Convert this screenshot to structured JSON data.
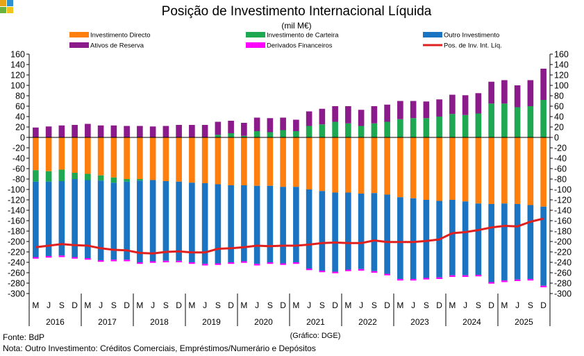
{
  "chart_data": {
    "type": "bar",
    "title": "Posição de Investimento Internacional Líquida",
    "subtitle": "(mil M€)",
    "source": "Fonte: BdP",
    "note": "Nota: Outro Investimento: Créditos Comerciais, Empréstimos/Numerário e Depósitos",
    "credit": "(Gráfico: DGE)",
    "ylim": [
      -300,
      160
    ],
    "yticks": [
      160,
      140,
      120,
      100,
      80,
      60,
      40,
      20,
      0,
      -20,
      -40,
      -60,
      -80,
      -100,
      -120,
      -140,
      -160,
      -180,
      -200,
      -220,
      -240,
      -260,
      -280,
      -300
    ],
    "grid": false,
    "legend_position": "top",
    "quarters": [
      "M",
      "J",
      "S",
      "D",
      "M",
      "J",
      "S",
      "D",
      "M",
      "J",
      "S",
      "D",
      "M",
      "J",
      "S",
      "D",
      "M",
      "J",
      "S",
      "D",
      "M",
      "J",
      "S",
      "D",
      "M",
      "J",
      "S",
      "D",
      "M",
      "J",
      "S",
      "D",
      "M",
      "J",
      "S",
      "D",
      "M",
      "J",
      "S",
      "D"
    ],
    "years": [
      "2016",
      "2017",
      "2018",
      "2019",
      "2020",
      "2021",
      "2022",
      "2023",
      "2024",
      "2025"
    ],
    "series": [
      {
        "name": "Investimento Directo",
        "color": "#FF7F0E",
        "kind": "bar",
        "values": [
          -63,
          -65,
          -62,
          -68,
          -70,
          -73,
          -77,
          -80,
          -80,
          -82,
          -84,
          -85,
          -87,
          -88,
          -90,
          -92,
          -92,
          -93,
          -93,
          -95,
          -95,
          -100,
          -103,
          -106,
          -106,
          -108,
          -107,
          -110,
          -115,
          -117,
          -120,
          -122,
          -120,
          -123,
          -127,
          -128,
          -127,
          -128,
          -130,
          -133
        ]
      },
      {
        "name": "Investimento de Carteira",
        "color": "#1DA851",
        "kind": "bar",
        "values": [
          -22,
          -20,
          -22,
          -12,
          -12,
          -10,
          -10,
          -5,
          -3,
          0,
          0,
          0,
          0,
          0,
          5,
          8,
          3,
          12,
          10,
          14,
          12,
          22,
          25,
          30,
          27,
          22,
          27,
          30,
          35,
          37,
          37,
          40,
          45,
          43,
          46,
          65,
          65,
          58,
          60,
          72
        ]
      },
      {
        "name": "Outro Investimento",
        "color": "#1A74C2",
        "kind": "bar",
        "values": [
          -145,
          -143,
          -143,
          -150,
          -150,
          -153,
          -148,
          -150,
          -157,
          -156,
          -153,
          -152,
          -153,
          -155,
          -152,
          -148,
          -146,
          -150,
          -147,
          -147,
          -145,
          -152,
          -153,
          -152,
          -148,
          -145,
          -150,
          -152,
          -157,
          -155,
          -150,
          -147,
          -145,
          -142,
          -137,
          -150,
          -148,
          -145,
          -142,
          -152
        ]
      },
      {
        "name": "Ativos de Reserva",
        "color": "#8B1A8B",
        "kind": "bar",
        "values": [
          19,
          21,
          23,
          24,
          26,
          23,
          23,
          22,
          22,
          21,
          22,
          24,
          24,
          24,
          25,
          24,
          25,
          26,
          27,
          24,
          22,
          28,
          30,
          30,
          33,
          31,
          33,
          33,
          35,
          33,
          32,
          33,
          37,
          38,
          39,
          42,
          45,
          42,
          50,
          60
        ]
      },
      {
        "name": "Derivados Financeiros",
        "color": "#FF00FF",
        "kind": "bar",
        "values": [
          -3,
          -3,
          -3,
          -3,
          -3,
          -3,
          -3,
          -3,
          -3,
          -3,
          -3,
          -3,
          -3,
          -3,
          -3,
          -3,
          -3,
          -3,
          -3,
          -3,
          -3,
          -3,
          -3,
          -3,
          -3,
          -3,
          -3,
          -3,
          -3,
          -3,
          -3,
          -3,
          -3,
          -3,
          -3,
          -3,
          -3,
          -3,
          -3,
          -3
        ]
      },
      {
        "name": "Pos. de Inv. Int. Líq.",
        "color": "#E0201E",
        "kind": "line",
        "values": [
          -211,
          -208,
          -205,
          -207,
          -208,
          -213,
          -216,
          -217,
          -222,
          -223,
          -220,
          -219,
          -221,
          -221,
          -214,
          -213,
          -211,
          -208,
          -209,
          -208,
          -208,
          -206,
          -203,
          -202,
          -203,
          -203,
          -198,
          -201,
          -201,
          -201,
          -199,
          -196,
          -184,
          -182,
          -178,
          -173,
          -170,
          -171,
          -162,
          -156
        ]
      }
    ]
  }
}
